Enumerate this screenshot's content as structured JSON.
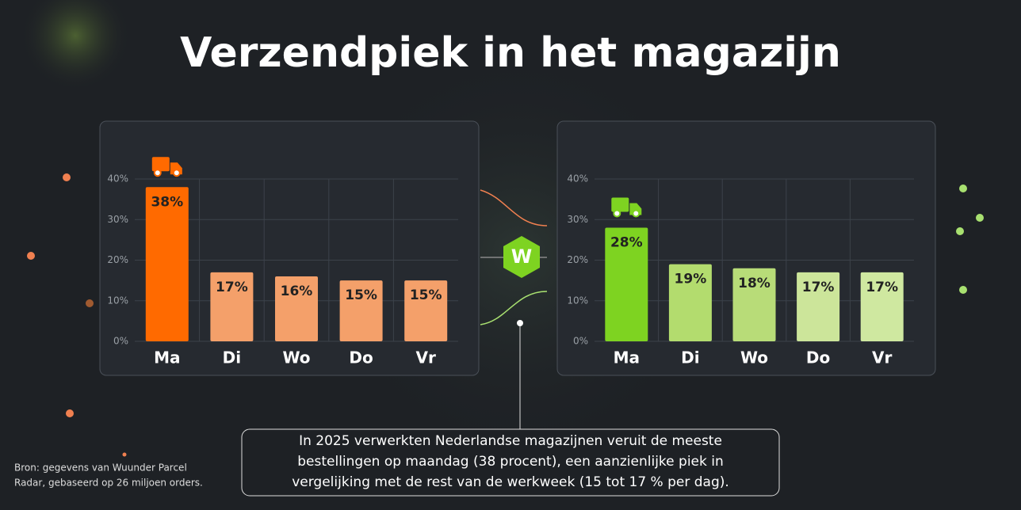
{
  "title": "Verzendpiek in het magazijn",
  "note": [
    "In 2025 verwerkten Nederlandse magazijnen veruit de meeste",
    "bestellingen op maandag (38 procent), een aanzienlijke piek in",
    "vergelijking met de rest van de werkweek (15 tot 17 % per dag)."
  ],
  "source": [
    "Bron: gegevens van Wuunder Parcel",
    "Radar, gebaseerd op 26 miljoen orders."
  ],
  "chart_data": [
    {
      "type": "bar",
      "categories": [
        "Ma",
        "Di",
        "Wo",
        "Do",
        "Vr"
      ],
      "values": [
        38,
        17,
        16,
        15,
        15
      ],
      "value_labels": [
        "38%",
        "17%",
        "16%",
        "15%",
        "15%"
      ],
      "colors": [
        "#ff6a00",
        "#f4a06a",
        "#f4a06a",
        "#f4a06a",
        "#f4a06a"
      ],
      "ylim": [
        0,
        40
      ],
      "yticks": [
        {
          "value": 0,
          "label": "0%"
        },
        {
          "value": 10,
          "label": "10%"
        },
        {
          "value": 20,
          "label": "20%"
        },
        {
          "value": 30,
          "label": "30%"
        },
        {
          "value": 40,
          "label": "40%"
        }
      ],
      "grid": true
    },
    {
      "type": "bar",
      "categories": [
        "Ma",
        "Di",
        "Wo",
        "Do",
        "Vr"
      ],
      "values": [
        28,
        19,
        18,
        17,
        17
      ],
      "value_labels": [
        "28%",
        "19%",
        "18%",
        "17%",
        "17%"
      ],
      "colors": [
        "#7ed321",
        "#b3dc6e",
        "#b8dc78",
        "#cce59a",
        "#cfe8a0"
      ],
      "ylim": [
        0,
        40
      ],
      "yticks": [
        {
          "value": 0,
          "label": "0%"
        },
        {
          "value": 10,
          "label": "10%"
        },
        {
          "value": 20,
          "label": "20%"
        },
        {
          "value": 30,
          "label": "30%"
        },
        {
          "value": 40,
          "label": "40%"
        }
      ],
      "grid": true
    }
  ]
}
